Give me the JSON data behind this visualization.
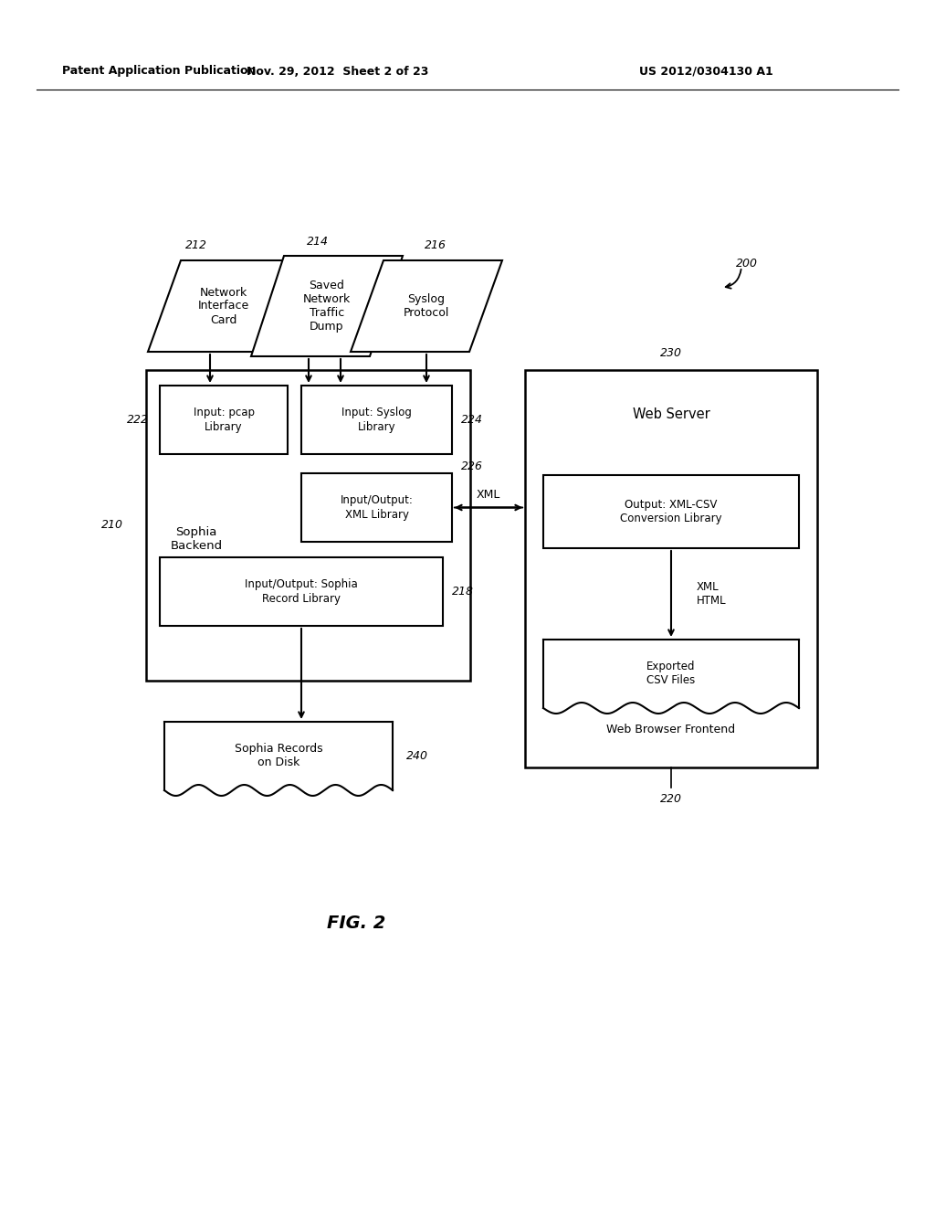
{
  "bg_color": "#ffffff",
  "header_left": "Patent Application Publication",
  "header_mid": "Nov. 29, 2012  Sheet 2 of 23",
  "header_right": "US 2012/0304130 A1",
  "fig_label": "FIG. 2",
  "label_200": "200",
  "label_210": "210",
  "label_212": "212",
  "label_214": "214",
  "label_216": "216",
  "label_218": "218",
  "label_220": "220",
  "label_222": "222",
  "label_224": "224",
  "label_226": "226",
  "label_230": "230",
  "label_240": "240",
  "box_pcap": "Input: pcap\nLibrary",
  "box_syslog_lib": "Input: Syslog\nLibrary",
  "box_xml_lib": "Input/Output:\nXML Library",
  "box_sophia_record": "Input/Output: Sophia\nRecord Library",
  "box_sophia_backend_label": "Sophia\nBackend",
  "box_sophia_records_disk": "Sophia Records\non Disk",
  "box_web_server_label": "Web Server",
  "box_xml_csv": "Output: XML-CSV\nConversion Library",
  "box_exported_csv": "Exported\nCSV Files",
  "box_web_browser": "Web Browser Frontend",
  "para_nic": "Network\nInterface\nCard",
  "para_saved": "Saved\nNetwork\nTraffic\nDump",
  "para_syslog": "Syslog\nProtocol",
  "xml_label": "XML",
  "xml_html_label": "XML\nHTML"
}
